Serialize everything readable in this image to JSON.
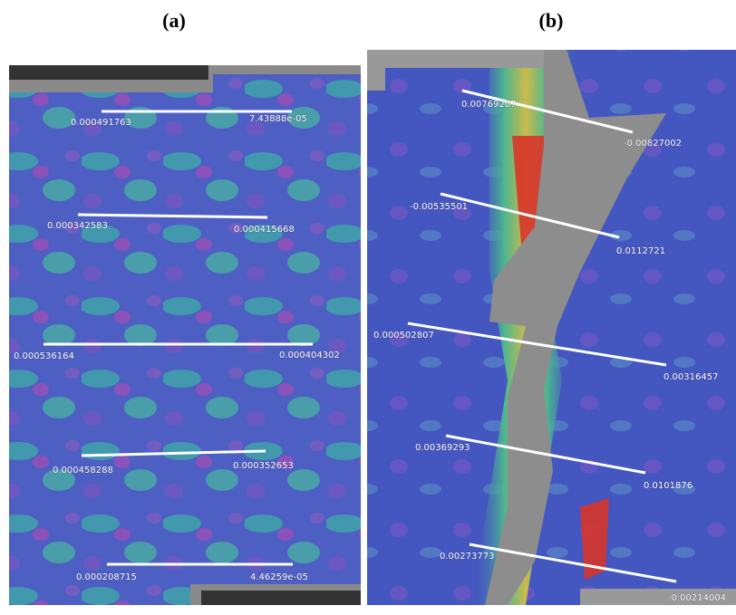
{
  "panels": [
    {
      "label": "(a)",
      "lines": [
        {
          "start": "0.000491763",
          "end": "7.43888e-05"
        },
        {
          "start": "0.000342583",
          "end": "0.000415668"
        },
        {
          "start": "0.000536164",
          "end": "0.000404302"
        },
        {
          "start": "0.000458288",
          "end": "0.000352653"
        },
        {
          "start": "0.000208715",
          "end": "4.46259e-05"
        }
      ]
    },
    {
      "label": "(b)",
      "lines": [
        {
          "start": "0.00769207",
          "end": "-0.00827002"
        },
        {
          "start": "-0.00535501",
          "end": "0.0112721"
        },
        {
          "start": "0.000502807",
          "end": "0.00316457"
        },
        {
          "start": "0.00369293",
          "end": "0.0101876"
        },
        {
          "start": "0.00273773",
          "end": "-0.00214004"
        }
      ]
    }
  ]
}
